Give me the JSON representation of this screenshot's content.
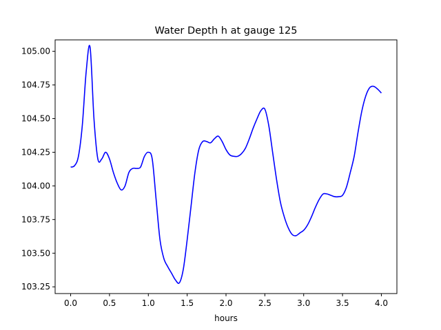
{
  "chart_data": {
    "type": "line",
    "title": "Water Depth h at gauge 125",
    "xlabel": "hours",
    "ylabel": "",
    "xlim": [
      -0.2,
      4.2
    ],
    "ylim": [
      103.2,
      105.085
    ],
    "xticks": [
      0.0,
      0.5,
      1.0,
      1.5,
      2.0,
      2.5,
      3.0,
      3.5,
      4.0
    ],
    "xtick_labels": [
      "0.0",
      "0.5",
      "1.0",
      "1.5",
      "2.0",
      "2.5",
      "3.0",
      "3.5",
      "4.0"
    ],
    "yticks": [
      103.25,
      103.5,
      103.75,
      104.0,
      104.25,
      104.5,
      104.75,
      105.0
    ],
    "ytick_labels": [
      "103.25",
      "103.50",
      "103.75",
      "104.00",
      "104.25",
      "104.50",
      "104.75",
      "105.00"
    ],
    "grid": false,
    "series": [
      {
        "color": "#0000ff",
        "x": [
          0.0,
          0.05,
          0.1,
          0.15,
          0.2,
          0.25,
          0.3,
          0.35,
          0.4,
          0.45,
          0.5,
          0.55,
          0.6,
          0.65,
          0.7,
          0.75,
          0.8,
          0.85,
          0.9,
          0.95,
          1.0,
          1.05,
          1.1,
          1.15,
          1.2,
          1.25,
          1.3,
          1.35,
          1.4,
          1.45,
          1.5,
          1.55,
          1.6,
          1.65,
          1.7,
          1.75,
          1.8,
          1.85,
          1.9,
          1.95,
          2.0,
          2.05,
          2.1,
          2.15,
          2.2,
          2.25,
          2.3,
          2.35,
          2.4,
          2.45,
          2.5,
          2.55,
          2.6,
          2.65,
          2.7,
          2.75,
          2.8,
          2.85,
          2.9,
          2.95,
          3.0,
          3.05,
          3.1,
          3.15,
          3.2,
          3.25,
          3.3,
          3.35,
          3.4,
          3.45,
          3.5,
          3.55,
          3.6,
          3.65,
          3.7,
          3.75,
          3.8,
          3.85,
          3.9,
          3.95,
          4.0
        ],
        "y": [
          104.14,
          104.15,
          104.22,
          104.45,
          104.85,
          105.03,
          104.5,
          104.2,
          104.2,
          104.25,
          104.2,
          104.1,
          104.02,
          103.97,
          104.0,
          104.1,
          104.13,
          104.13,
          104.14,
          104.22,
          104.25,
          104.2,
          103.9,
          103.6,
          103.46,
          103.4,
          103.35,
          103.3,
          103.28,
          103.38,
          103.6,
          103.85,
          104.1,
          104.27,
          104.33,
          104.33,
          104.32,
          104.35,
          104.37,
          104.33,
          104.27,
          104.23,
          104.22,
          104.22,
          104.24,
          104.28,
          104.35,
          104.43,
          104.5,
          104.56,
          104.57,
          104.45,
          104.25,
          104.05,
          103.88,
          103.77,
          103.69,
          103.64,
          103.63,
          103.65,
          103.67,
          103.71,
          103.77,
          103.84,
          103.9,
          103.94,
          103.94,
          103.93,
          103.92,
          103.92,
          103.93,
          103.99,
          104.1,
          104.22,
          104.4,
          104.56,
          104.67,
          104.73,
          104.74,
          104.72,
          104.69
        ]
      }
    ]
  }
}
